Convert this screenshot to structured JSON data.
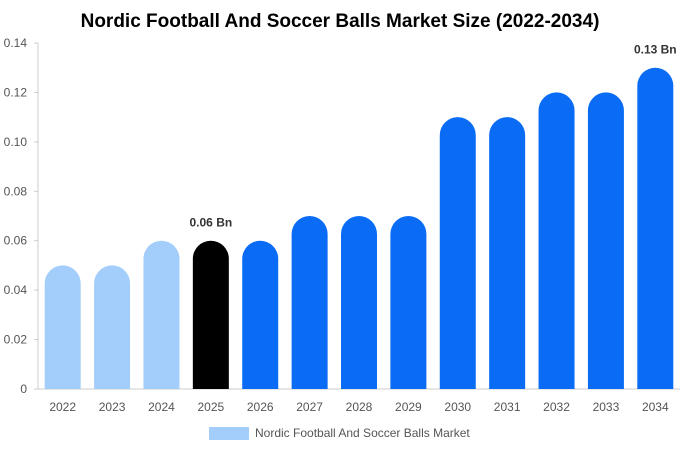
{
  "chart_data": {
    "type": "bar",
    "title": "Nordic Football And Soccer Balls Market Size (2022-2034)",
    "xlabel": "",
    "ylabel": "",
    "categories": [
      "2022",
      "2023",
      "2024",
      "2025",
      "2026",
      "2027",
      "2028",
      "2029",
      "2030",
      "2031",
      "2032",
      "2033",
      "2034"
    ],
    "series": [
      {
        "name": "Nordic Football And Soccer Balls Market",
        "values": [
          0.05,
          0.05,
          0.06,
          0.06,
          0.06,
          0.07,
          0.07,
          0.07,
          0.11,
          0.11,
          0.12,
          0.12,
          0.13
        ]
      }
    ],
    "ylim": [
      0,
      0.14
    ],
    "yticks": [
      "0",
      "0.02",
      "0.04",
      "0.06",
      "0.08",
      "0.10",
      "0.12",
      "0.14"
    ],
    "data_labels": [
      {
        "index": 3,
        "text": "0.06 Bn"
      },
      {
        "index": 12,
        "text": "0.13 Bn"
      }
    ],
    "bar_colors": [
      "#a3cdfb",
      "#a3cdfb",
      "#a3cdfb",
      "#000000",
      "#0a6cf5",
      "#0a6cf5",
      "#0a6cf5",
      "#0a6cf5",
      "#0a6cf5",
      "#0a6cf5",
      "#0a6cf5",
      "#0a6cf5",
      "#0a6cf5"
    ],
    "legend_color": "#a3cdfb",
    "legend_placement": "bottom",
    "grid": false
  }
}
